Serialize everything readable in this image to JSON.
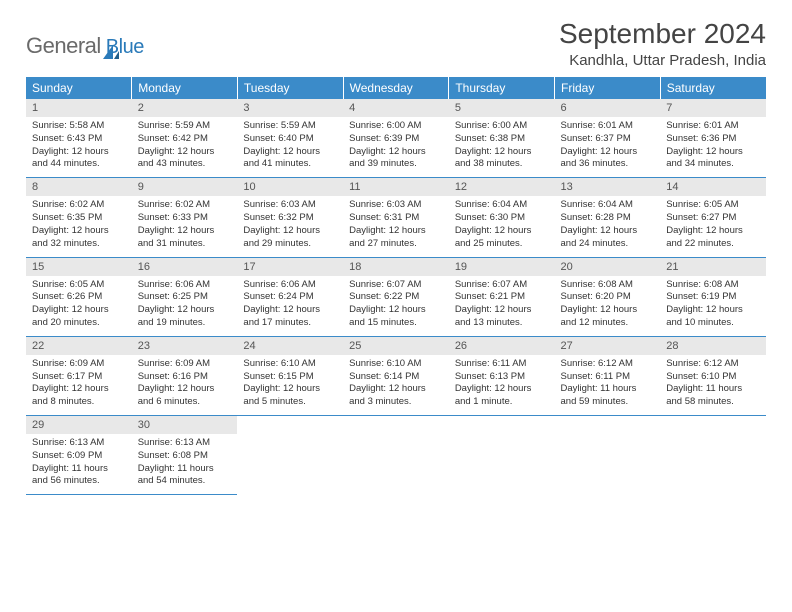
{
  "logo": {
    "word1": "General",
    "word2": "Blue"
  },
  "title": "September 2024",
  "location": "Kandhla, Uttar Pradesh, India",
  "colors": {
    "header_bg": "#3b8bc9",
    "header_text": "#ffffff",
    "daynum_bg": "#e8e8e8",
    "row_divider": "#3b8bc9",
    "logo_gray": "#6a6a6a",
    "logo_blue": "#2a7ab9",
    "body_text": "#333333"
  },
  "typography": {
    "title_fontsize": 28,
    "location_fontsize": 15,
    "weekday_fontsize": 12,
    "daynum_fontsize": 11,
    "content_fontsize": 9.5
  },
  "weekdays": [
    "Sunday",
    "Monday",
    "Tuesday",
    "Wednesday",
    "Thursday",
    "Friday",
    "Saturday"
  ],
  "days": [
    {
      "n": "1",
      "sr": "5:58 AM",
      "ss": "6:43 PM",
      "dl": "12 hours and 44 minutes."
    },
    {
      "n": "2",
      "sr": "5:59 AM",
      "ss": "6:42 PM",
      "dl": "12 hours and 43 minutes."
    },
    {
      "n": "3",
      "sr": "5:59 AM",
      "ss": "6:40 PM",
      "dl": "12 hours and 41 minutes."
    },
    {
      "n": "4",
      "sr": "6:00 AM",
      "ss": "6:39 PM",
      "dl": "12 hours and 39 minutes."
    },
    {
      "n": "5",
      "sr": "6:00 AM",
      "ss": "6:38 PM",
      "dl": "12 hours and 38 minutes."
    },
    {
      "n": "6",
      "sr": "6:01 AM",
      "ss": "6:37 PM",
      "dl": "12 hours and 36 minutes."
    },
    {
      "n": "7",
      "sr": "6:01 AM",
      "ss": "6:36 PM",
      "dl": "12 hours and 34 minutes."
    },
    {
      "n": "8",
      "sr": "6:02 AM",
      "ss": "6:35 PM",
      "dl": "12 hours and 32 minutes."
    },
    {
      "n": "9",
      "sr": "6:02 AM",
      "ss": "6:33 PM",
      "dl": "12 hours and 31 minutes."
    },
    {
      "n": "10",
      "sr": "6:03 AM",
      "ss": "6:32 PM",
      "dl": "12 hours and 29 minutes."
    },
    {
      "n": "11",
      "sr": "6:03 AM",
      "ss": "6:31 PM",
      "dl": "12 hours and 27 minutes."
    },
    {
      "n": "12",
      "sr": "6:04 AM",
      "ss": "6:30 PM",
      "dl": "12 hours and 25 minutes."
    },
    {
      "n": "13",
      "sr": "6:04 AM",
      "ss": "6:28 PM",
      "dl": "12 hours and 24 minutes."
    },
    {
      "n": "14",
      "sr": "6:05 AM",
      "ss": "6:27 PM",
      "dl": "12 hours and 22 minutes."
    },
    {
      "n": "15",
      "sr": "6:05 AM",
      "ss": "6:26 PM",
      "dl": "12 hours and 20 minutes."
    },
    {
      "n": "16",
      "sr": "6:06 AM",
      "ss": "6:25 PM",
      "dl": "12 hours and 19 minutes."
    },
    {
      "n": "17",
      "sr": "6:06 AM",
      "ss": "6:24 PM",
      "dl": "12 hours and 17 minutes."
    },
    {
      "n": "18",
      "sr": "6:07 AM",
      "ss": "6:22 PM",
      "dl": "12 hours and 15 minutes."
    },
    {
      "n": "19",
      "sr": "6:07 AM",
      "ss": "6:21 PM",
      "dl": "12 hours and 13 minutes."
    },
    {
      "n": "20",
      "sr": "6:08 AM",
      "ss": "6:20 PM",
      "dl": "12 hours and 12 minutes."
    },
    {
      "n": "21",
      "sr": "6:08 AM",
      "ss": "6:19 PM",
      "dl": "12 hours and 10 minutes."
    },
    {
      "n": "22",
      "sr": "6:09 AM",
      "ss": "6:17 PM",
      "dl": "12 hours and 8 minutes."
    },
    {
      "n": "23",
      "sr": "6:09 AM",
      "ss": "6:16 PM",
      "dl": "12 hours and 6 minutes."
    },
    {
      "n": "24",
      "sr": "6:10 AM",
      "ss": "6:15 PM",
      "dl": "12 hours and 5 minutes."
    },
    {
      "n": "25",
      "sr": "6:10 AM",
      "ss": "6:14 PM",
      "dl": "12 hours and 3 minutes."
    },
    {
      "n": "26",
      "sr": "6:11 AM",
      "ss": "6:13 PM",
      "dl": "12 hours and 1 minute."
    },
    {
      "n": "27",
      "sr": "6:12 AM",
      "ss": "6:11 PM",
      "dl": "11 hours and 59 minutes."
    },
    {
      "n": "28",
      "sr": "6:12 AM",
      "ss": "6:10 PM",
      "dl": "11 hours and 58 minutes."
    },
    {
      "n": "29",
      "sr": "6:13 AM",
      "ss": "6:09 PM",
      "dl": "11 hours and 56 minutes."
    },
    {
      "n": "30",
      "sr": "6:13 AM",
      "ss": "6:08 PM",
      "dl": "11 hours and 54 minutes."
    }
  ],
  "labels": {
    "sunrise": "Sunrise:",
    "sunset": "Sunset:",
    "daylight": "Daylight:"
  },
  "layout": {
    "columns": 7,
    "rows": 5,
    "first_weekday_offset": 0
  }
}
